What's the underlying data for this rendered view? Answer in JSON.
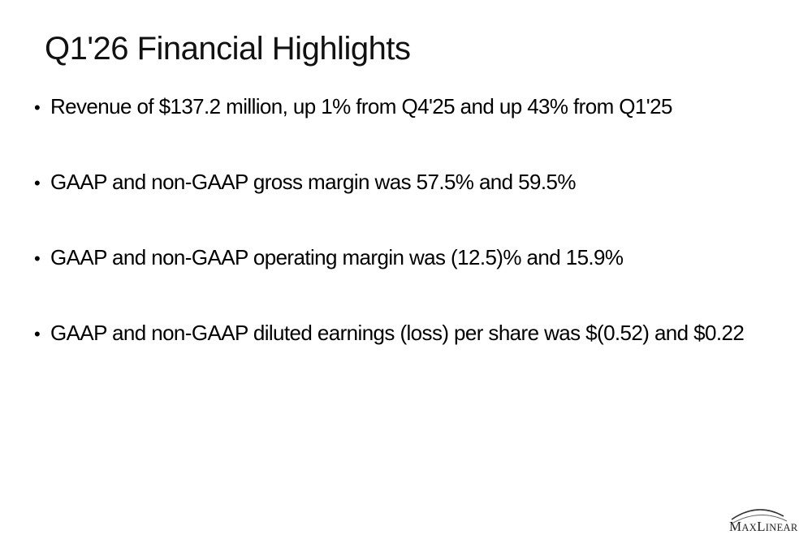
{
  "slide": {
    "title": "Q1'26 Financial Highlights",
    "bullets": [
      {
        "text": "Revenue of $137.2 million, up 1% from Q4'25 and up 43% from Q1'25"
      },
      {
        "text": "GAAP and non-GAAP gross margin was 57.5% and 59.5%"
      },
      {
        "text": "GAAP and non-GAAP operating margin was (12.5)% and 15.9%"
      },
      {
        "text": "GAAP and non-GAAP diluted earnings (loss) per share was $(0.52) and $0.22"
      }
    ]
  },
  "logo": {
    "text": "MaxLinear",
    "color": "#222222"
  }
}
